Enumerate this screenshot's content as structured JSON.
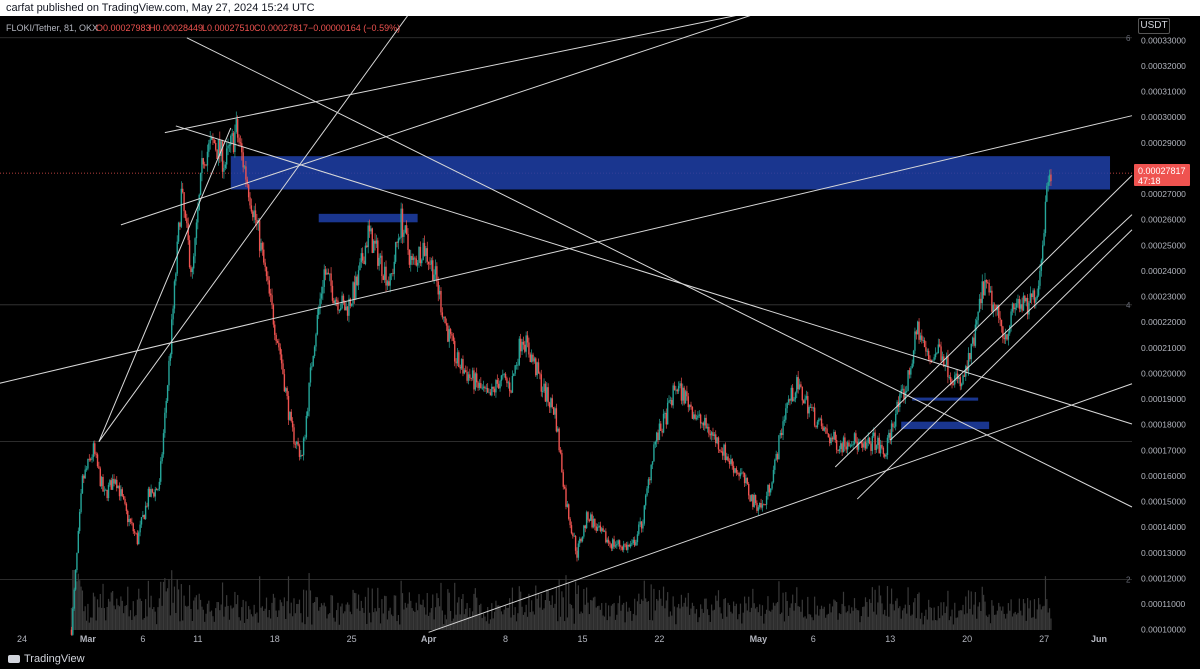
{
  "header": {
    "published": "carfat published on TradingView.com, May 27, 2024 15:24 UTC"
  },
  "legend": {
    "symbol": "FLOKI/Tether, 81, OKX",
    "open": "O0.00027983",
    "high": "H0.00028449",
    "low": "L0.00027510",
    "close": "C0.00027817",
    "change": "−0.00000164 (−0.59%)"
  },
  "currency_label": "USDT",
  "price_tag": {
    "value": "0.00027817",
    "countdown": "47:18"
  },
  "colors": {
    "background": "#000000",
    "up": "#26a69a",
    "down": "#ef5350",
    "zone": "#1e3fa8",
    "trendline": "#d9d9d9",
    "price_tag": "#ef5350",
    "axis_text": "#b2b5be"
  },
  "footer": {
    "brand": "TradingView"
  },
  "chart_data": {
    "type": "candlestick",
    "xlim": [
      "2024-02-22",
      "2024-06-04"
    ],
    "ylim": [
      9.99e-05,
      0.0003395
    ],
    "y_ticks": [
      "0.00033000",
      "0.00032000",
      "0.00031000",
      "0.00030000",
      "0.00029000",
      "0.00028000",
      "0.00027000",
      "0.00026000",
      "0.00025000",
      "0.00024000",
      "0.00023000",
      "0.00022000",
      "0.00021000",
      "0.00020000",
      "0.00019000",
      "0.00018000",
      "0.00017000",
      "0.00016000",
      "0.00015000",
      "0.00014000",
      "0.00013000",
      "0.00012000",
      "0.00011000",
      "0.00010000"
    ],
    "x_ticks": [
      {
        "date": "2024-02-24",
        "label": "24"
      },
      {
        "date": "2024-03-01",
        "label": "Mar"
      },
      {
        "date": "2024-03-06",
        "label": "6"
      },
      {
        "date": "2024-03-11",
        "label": "11"
      },
      {
        "date": "2024-03-18",
        "label": "18"
      },
      {
        "date": "2024-03-25",
        "label": "25"
      },
      {
        "date": "2024-04-01",
        "label": "Apr"
      },
      {
        "date": "2024-04-08",
        "label": "8"
      },
      {
        "date": "2024-04-15",
        "label": "15"
      },
      {
        "date": "2024-04-22",
        "label": "22"
      },
      {
        "date": "2024-05-01",
        "label": "May"
      },
      {
        "date": "2024-05-06",
        "label": "6"
      },
      {
        "date": "2024-05-13",
        "label": "13"
      },
      {
        "date": "2024-05-20",
        "label": "20"
      },
      {
        "date": "2024-05-27",
        "label": "27"
      },
      {
        "date": "2024-06-01",
        "label": "Jun"
      }
    ],
    "fib_labels": [
      {
        "price": 0.000331,
        "label": "6"
      },
      {
        "price": 0.0002268,
        "label": "4"
      },
      {
        "price": 0.0001734,
        "label": ""
      },
      {
        "price": 0.0001196,
        "label": "2"
      }
    ],
    "price_path": [
      [
        "2024-02-28",
        0.0001
      ],
      [
        "2024-02-29",
        0.000158
      ],
      [
        "2024-03-01",
        0.00017
      ],
      [
        "2024-03-02",
        0.000152
      ],
      [
        "2024-03-03",
        0.00016
      ],
      [
        "2024-03-04",
        0.000145
      ],
      [
        "2024-03-05",
        0.000135
      ],
      [
        "2024-03-06",
        0.000152
      ],
      [
        "2024-03-07",
        0.000156
      ],
      [
        "2024-03-08",
        0.00021
      ],
      [
        "2024-03-09",
        0.00027
      ],
      [
        "2024-03-10",
        0.000238
      ],
      [
        "2024-03-11",
        0.000285
      ],
      [
        "2024-03-12",
        0.00029
      ],
      [
        "2024-03-13",
        0.000282
      ],
      [
        "2024-03-14",
        0.000295
      ],
      [
        "2024-03-15",
        0.000275
      ],
      [
        "2024-03-16",
        0.000255
      ],
      [
        "2024-03-17",
        0.00023
      ],
      [
        "2024-03-18",
        0.000208
      ],
      [
        "2024-03-19",
        0.000178
      ],
      [
        "2024-03-20",
        0.000167
      ],
      [
        "2024-03-21",
        0.00021
      ],
      [
        "2024-03-22",
        0.00024
      ],
      [
        "2024-03-23",
        0.00023
      ],
      [
        "2024-03-24",
        0.000225
      ],
      [
        "2024-03-25",
        0.000235
      ],
      [
        "2024-03-26",
        0.000255
      ],
      [
        "2024-03-27",
        0.000245
      ],
      [
        "2024-03-28",
        0.000235
      ],
      [
        "2024-03-29",
        0.00026
      ],
      [
        "2024-03-30",
        0.000242
      ],
      [
        "2024-03-31",
        0.00025
      ],
      [
        "2024-04-01",
        0.00024
      ],
      [
        "2024-04-02",
        0.00022
      ],
      [
        "2024-04-03",
        0.000205
      ],
      [
        "2024-04-04",
        0.0002
      ],
      [
        "2024-04-05",
        0.000195
      ],
      [
        "2024-04-06",
        0.00019
      ],
      [
        "2024-04-07",
        0.000198
      ],
      [
        "2024-04-08",
        0.000195
      ],
      [
        "2024-04-09",
        0.000215
      ],
      [
        "2024-04-10",
        0.000205
      ],
      [
        "2024-04-11",
        0.000193
      ],
      [
        "2024-04-12",
        0.000185
      ],
      [
        "2024-04-13",
        0.00015
      ],
      [
        "2024-04-14",
        0.00013
      ],
      [
        "2024-04-15",
        0.000145
      ],
      [
        "2024-04-16",
        0.000138
      ],
      [
        "2024-04-17",
        0.000134
      ],
      [
        "2024-04-18",
        0.000133
      ],
      [
        "2024-04-19",
        0.000132
      ],
      [
        "2024-04-20",
        0.000143
      ],
      [
        "2024-04-21",
        0.000172
      ],
      [
        "2024-04-22",
        0.000182
      ],
      [
        "2024-04-23",
        0.000195
      ],
      [
        "2024-04-24",
        0.00019
      ],
      [
        "2024-04-25",
        0.000182
      ],
      [
        "2024-04-26",
        0.000178
      ],
      [
        "2024-04-27",
        0.000172
      ],
      [
        "2024-04-28",
        0.000165
      ],
      [
        "2024-04-29",
        0.00016
      ],
      [
        "2024-04-30",
        0.00015
      ],
      [
        "2024-05-01",
        0.000148
      ],
      [
        "2024-05-02",
        0.000164
      ],
      [
        "2024-05-03",
        0.000187
      ],
      [
        "2024-05-04",
        0.000195
      ],
      [
        "2024-05-05",
        0.000188
      ],
      [
        "2024-05-06",
        0.00018
      ],
      [
        "2024-05-07",
        0.000175
      ],
      [
        "2024-05-08",
        0.000172
      ],
      [
        "2024-05-09",
        0.000175
      ],
      [
        "2024-05-10",
        0.00017
      ],
      [
        "2024-05-11",
        0.000174
      ],
      [
        "2024-05-12",
        0.000168
      ],
      [
        "2024-05-13",
        0.000185
      ],
      [
        "2024-05-14",
        0.000195
      ],
      [
        "2024-05-15",
        0.000218
      ],
      [
        "2024-05-16",
        0.000205
      ],
      [
        "2024-05-17",
        0.00021
      ],
      [
        "2024-05-18",
        0.0002
      ],
      [
        "2024-05-19",
        0.000195
      ],
      [
        "2024-05-20",
        0.00021
      ],
      [
        "2024-05-21",
        0.000235
      ],
      [
        "2024-05-22",
        0.000225
      ],
      [
        "2024-05-23",
        0.000215
      ],
      [
        "2024-05-24",
        0.000228
      ],
      [
        "2024-05-25",
        0.000225
      ],
      [
        "2024-05-26",
        0.000235
      ],
      [
        "2024-05-27",
        0.000283
      ],
      [
        "2024-05-27T15:00",
        0.0002782
      ]
    ],
    "zones": [
      {
        "from": "2024-03-14",
        "to": "2024-06-02",
        "top": 0.0002848,
        "bottom": 0.0002718
      },
      {
        "from": "2024-03-22",
        "to": "2024-03-31",
        "top": 0.0002623,
        "bottom": 0.000259
      },
      {
        "from": "2024-05-15",
        "to": "2024-05-21",
        "top": 0.0001906,
        "bottom": 0.0001894
      },
      {
        "from": "2024-05-14",
        "to": "2024-05-22",
        "top": 0.0001812,
        "bottom": 0.0001783
      }
    ],
    "trendlines": [
      [
        [
          "2024-02-21",
          0.0001952
        ],
        [
          "2024-06-04",
          0.0003006
        ]
      ],
      [
        [
          "2024-03-08",
          0.000294
        ],
        [
          "2024-05-05",
          0.000345
        ]
      ],
      [
        [
          "2024-03-10",
          0.000331
        ],
        [
          "2024-06-04",
          0.0001479
        ]
      ],
      [
        [
          "2024-03-09",
          0.0002966
        ],
        [
          "2024-06-04",
          0.0001803
        ]
      ],
      [
        [
          "2024-03-02",
          0.0001734
        ],
        [
          "2024-03-31",
          0.000345
        ]
      ],
      [
        [
          "2024-03-02",
          0.0001734
        ],
        [
          "2024-03-14",
          0.0002958
        ]
      ],
      [
        [
          "2024-04-01",
          9.9e-05
        ],
        [
          "2024-06-04",
          0.000196
        ]
      ],
      [
        [
          "2024-05-08",
          0.0001635
        ],
        [
          "2024-06-04",
          0.0002773
        ]
      ],
      [
        [
          "2024-05-13",
          0.000174
        ],
        [
          "2024-06-04",
          0.000262
        ]
      ],
      [
        [
          "2024-05-10",
          0.000151
        ],
        [
          "2024-06-04",
          0.0002561
        ]
      ],
      [
        [
          "2024-03-04",
          0.000258
        ],
        [
          "2024-05-04",
          0.000345
        ]
      ]
    ]
  }
}
